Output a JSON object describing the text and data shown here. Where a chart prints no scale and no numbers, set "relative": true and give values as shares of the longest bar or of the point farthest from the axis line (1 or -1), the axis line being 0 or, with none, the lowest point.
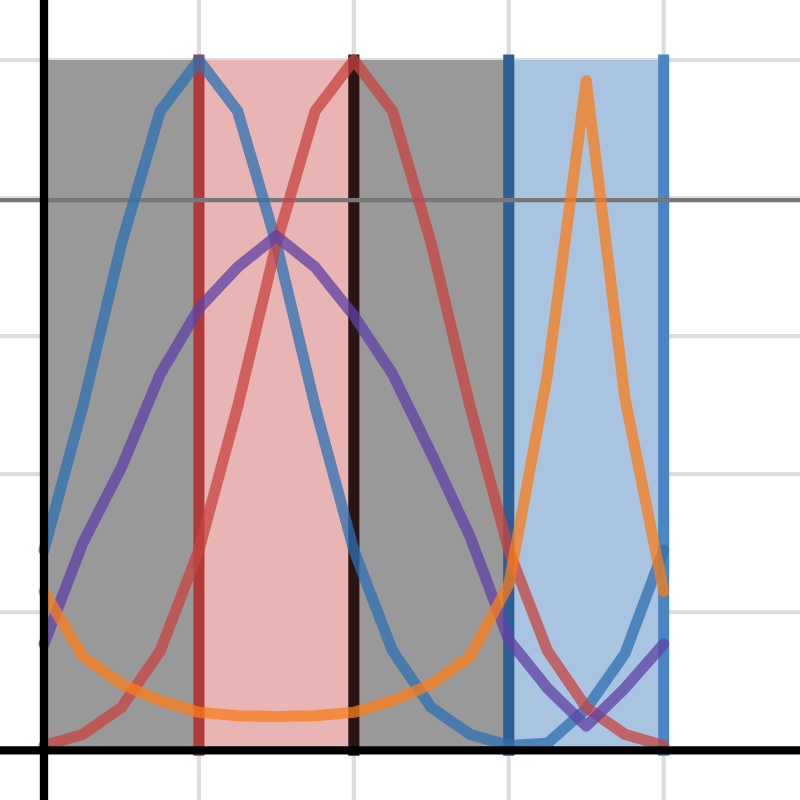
{
  "chart_data": {
    "type": "line",
    "relative": true,
    "categories": [
      null,
      null,
      null,
      null,
      null,
      null,
      null,
      null,
      null,
      null,
      null,
      null,
      null,
      null,
      null,
      null,
      null
    ],
    "grid": true,
    "legend": false,
    "marker": "none",
    "line_style": "solid",
    "series": [
      {
        "color": "#2d70b3",
        "values": [
          0.29,
          0.498,
          0.734,
          0.926,
          1,
          0.926,
          0.734,
          0.498,
          0.29,
          0.144,
          0.062,
          0.023,
          0.007,
          0.01,
          0.06,
          0.14,
          0.29
        ]
      },
      {
        "color": "#c74440",
        "values": [
          0.007,
          0.023,
          0.062,
          0.144,
          0.29,
          0.498,
          0.734,
          0.926,
          1,
          0.926,
          0.734,
          0.498,
          0.29,
          0.144,
          0.062,
          0.023,
          0.007
        ]
      },
      {
        "color": "#6042a6",
        "values": [
          0.154,
          0.3,
          0.41,
          0.545,
          0.64,
          0.7,
          0.745,
          0.7,
          0.63,
          0.545,
          0.43,
          0.31,
          0.16,
          0.09,
          0.035,
          0.09,
          0.154
        ]
      },
      {
        "color": "#fa7e19",
        "values": [
          0.23,
          0.136,
          0.096,
          0.072,
          0.055,
          0.05,
          0.049,
          0.05,
          0.055,
          0.072,
          0.096,
          0.136,
          0.24,
          0.545,
          0.97,
          0.51,
          0.23
        ]
      }
    ],
    "ref_lines": [
      {
        "axis": "y",
        "value": 0.797,
        "color": "#777777"
      }
    ]
  }
}
